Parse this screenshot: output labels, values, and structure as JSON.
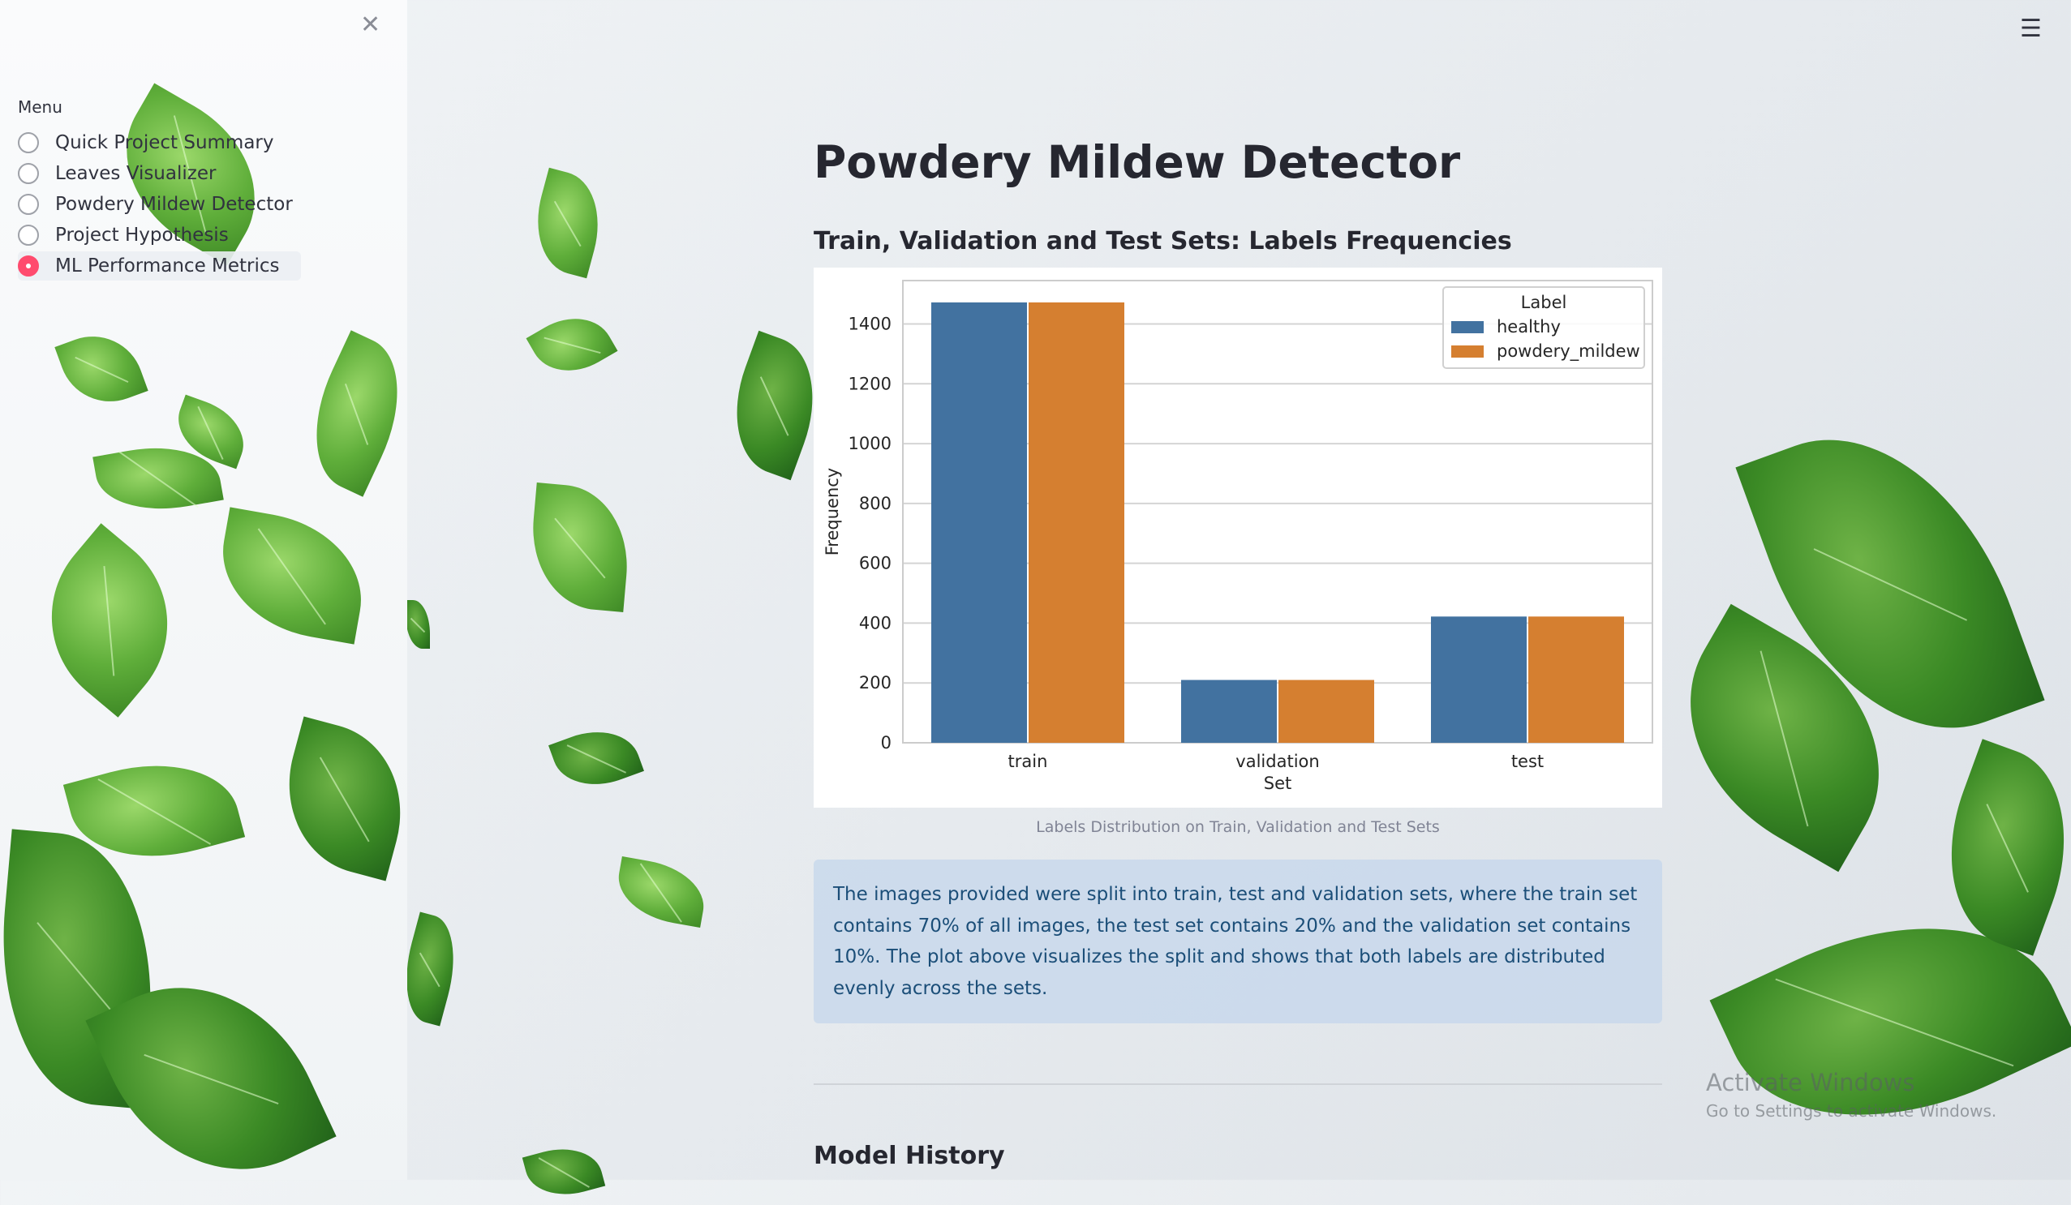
{
  "sidebar": {
    "close_icon": "close-icon",
    "menu_label": "Menu",
    "items": [
      {
        "label": "Quick Project Summary",
        "selected": false
      },
      {
        "label": "Leaves Visualizer",
        "selected": false
      },
      {
        "label": "Powdery Mildew Detector",
        "selected": false
      },
      {
        "label": "Project Hypothesis",
        "selected": false
      },
      {
        "label": "ML Performance Metrics",
        "selected": true
      }
    ]
  },
  "header": {
    "menu_icon": "hamburger-menu-icon"
  },
  "main": {
    "title": "Powdery Mildew Detector",
    "chart_heading": "Train, Validation and Test Sets: Labels Frequencies",
    "chart_caption": "Labels Distribution on Train, Validation and Test Sets",
    "info_text": "The images provided were split into train, test and validation sets, where the train set contains 70% of all images, the test set contains 20% and the validation set contains 10%. The plot above visualizes the split and shows that both labels are distributed evenly across the sets.",
    "model_history_heading": "Model History"
  },
  "watermark": {
    "line1": "Activate Windows",
    "line2": "Go to Settings to activate Windows."
  },
  "colors": {
    "accent": "#ff4b6e",
    "healthy": "#4272a0",
    "powdery_mildew": "#d57f30"
  },
  "chart_data": {
    "type": "bar",
    "categories": [
      "train",
      "validation",
      "test"
    ],
    "series": [
      {
        "name": "healthy",
        "values": [
          1472,
          210,
          422
        ]
      },
      {
        "name": "powdery_mildew",
        "values": [
          1472,
          210,
          422
        ]
      }
    ],
    "xlabel": "Set",
    "ylabel": "Frequency",
    "ylim": [
      0,
      1545
    ],
    "yticks": [
      0,
      200,
      400,
      600,
      800,
      1000,
      1200,
      1400
    ],
    "legend_title": "Label",
    "legend_position": "top-right",
    "grid": true
  }
}
